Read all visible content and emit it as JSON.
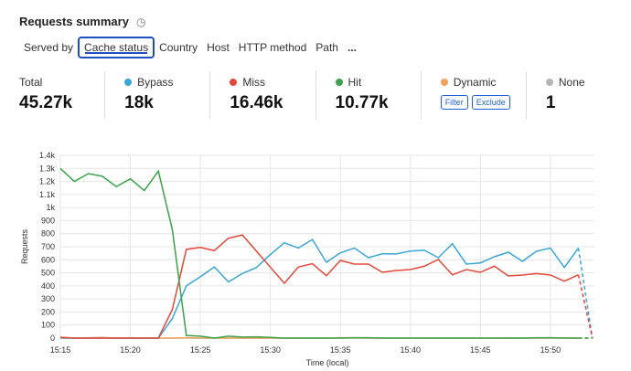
{
  "header": {
    "title": "Requests summary",
    "icon": "pie-clock-icon"
  },
  "tabs": [
    "Served by",
    "Cache status",
    "Country",
    "Host",
    "HTTP method",
    "Path",
    "..."
  ],
  "stats": [
    {
      "label": "Total",
      "value": "45.27k"
    },
    {
      "label": "Bypass",
      "value": "18k",
      "color": "#3aa6d8"
    },
    {
      "label": "Miss",
      "value": "16.46k",
      "color": "#e5473a"
    },
    {
      "label": "Hit",
      "value": "10.77k",
      "color": "#3aa34a"
    },
    {
      "label": "Dynamic",
      "color": "#f0a25a",
      "filter": "Filter",
      "exclude": "Exclude"
    },
    {
      "label": "None",
      "value": "1",
      "color": "#b5b5b5"
    }
  ],
  "chart_data": {
    "type": "line",
    "xlabel": "Time (local)",
    "ylabel": "Requests",
    "ylim": [
      0,
      1400
    ],
    "yticks": [
      "0",
      "100",
      "200",
      "300",
      "400",
      "500",
      "600",
      "700",
      "800",
      "900",
      "1k",
      "1.1k",
      "1.2k",
      "1.3k",
      "1.4k"
    ],
    "xticks": [
      "15:15",
      "15:20",
      "15:25",
      "15:30",
      "15:35",
      "15:40",
      "15:45",
      "15:50"
    ],
    "x_start": "15:15",
    "x_step_minutes": 1,
    "last_point_dashed": true,
    "series": [
      {
        "name": "Hit",
        "color": "#3aa34a",
        "values": [
          1300,
          1200,
          1260,
          1240,
          1160,
          1220,
          1130,
          1280,
          830,
          20,
          15,
          0,
          15,
          8,
          10,
          5,
          0,
          0,
          0,
          0,
          0,
          3,
          3,
          0,
          0,
          0,
          0,
          0,
          0,
          0,
          0,
          0,
          0,
          0,
          3,
          3,
          0,
          0,
          0
        ]
      },
      {
        "name": "Miss",
        "color": "#e5473a",
        "values": [
          5,
          0,
          0,
          0,
          0,
          0,
          0,
          0,
          220,
          680,
          695,
          670,
          765,
          790,
          667,
          543,
          420,
          545,
          570,
          478,
          595,
          567,
          567,
          504,
          518,
          525,
          551,
          602,
          485,
          525,
          504,
          551,
          476,
          483,
          494,
          483,
          436,
          485,
          0
        ]
      },
      {
        "name": "Bypass",
        "color": "#3aa6d8",
        "values": [
          0,
          0,
          0,
          0,
          0,
          0,
          0,
          0,
          150,
          400,
          470,
          545,
          430,
          495,
          540,
          640,
          730,
          690,
          755,
          581,
          653,
          690,
          616,
          646,
          645,
          667,
          673,
          616,
          723,
          567,
          576,
          623,
          658,
          588,
          665,
          690,
          541,
          690,
          0
        ]
      },
      {
        "name": "Dynamic",
        "color": "#f0a25a",
        "values": [
          8,
          0,
          3,
          5,
          0,
          3,
          0,
          0,
          0,
          3,
          0,
          0,
          0,
          0,
          0,
          0,
          0,
          0,
          0,
          0,
          3,
          3,
          0,
          0,
          0,
          0,
          0,
          0,
          0,
          0,
          0,
          0,
          2,
          0,
          0,
          0,
          3,
          0,
          0
        ]
      },
      {
        "name": "None",
        "color": "#b5b5b5",
        "values": [
          0,
          0,
          0,
          0,
          0,
          0,
          0,
          0,
          0,
          0,
          0,
          0,
          0,
          0,
          0,
          0,
          0,
          0,
          0,
          0,
          0,
          0,
          0,
          0,
          0,
          0,
          0,
          0,
          0,
          0,
          0,
          0,
          0,
          0,
          0,
          0,
          0,
          0,
          0
        ]
      }
    ]
  }
}
